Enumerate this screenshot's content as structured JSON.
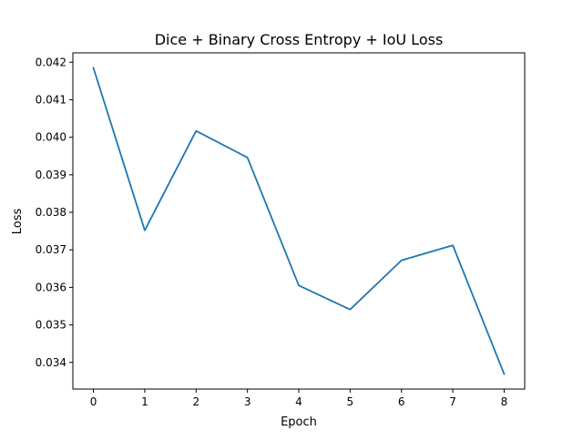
{
  "chart_data": {
    "type": "line",
    "title": "Dice + Binary Cross Entropy + IoU Loss",
    "xlabel": "Epoch",
    "ylabel": "Loss",
    "x": [
      0,
      1,
      2,
      3,
      4,
      5,
      6,
      7,
      8
    ],
    "series": [
      {
        "values": [
          0.04185,
          0.03752,
          0.04017,
          0.03946,
          0.03605,
          0.03541,
          0.03672,
          0.03712,
          0.03369
        ],
        "color": "#1f77b4"
      }
    ],
    "xlim": [
      -0.4,
      8.4
    ],
    "ylim": [
      0.03329,
      0.04225
    ],
    "xticks": [
      0,
      1,
      2,
      3,
      4,
      5,
      6,
      7,
      8
    ],
    "xtick_labels": [
      "0",
      "1",
      "2",
      "3",
      "4",
      "5",
      "6",
      "7",
      "8"
    ],
    "yticks": [
      0.034,
      0.035,
      0.036,
      0.037,
      0.038,
      0.039,
      0.04,
      0.041,
      0.042
    ],
    "ytick_labels": [
      "0.034",
      "0.035",
      "0.036",
      "0.037",
      "0.038",
      "0.039",
      "0.040",
      "0.041",
      "0.042"
    ],
    "grid": false,
    "legend": "none"
  }
}
